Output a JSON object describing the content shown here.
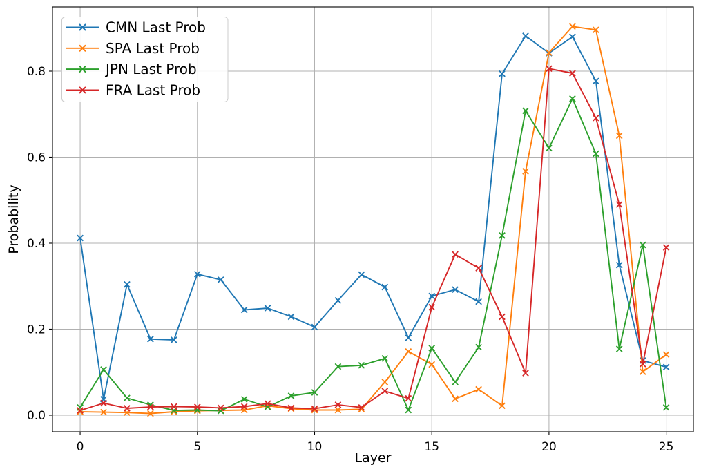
{
  "figure": {
    "background": "#ffffff"
  },
  "chart_data": {
    "type": "line",
    "title": "",
    "xlabel": "Layer",
    "ylabel": "Probability",
    "x": [
      0,
      1,
      2,
      3,
      4,
      5,
      6,
      7,
      8,
      9,
      10,
      11,
      12,
      13,
      14,
      15,
      16,
      17,
      18,
      19,
      20,
      21,
      22,
      23,
      24,
      25
    ],
    "series": [
      {
        "name": "CMN Last Prob",
        "color": "#1f77b4",
        "marker": "x",
        "values": [
          0.412,
          0.037,
          0.304,
          0.177,
          0.175,
          0.328,
          0.315,
          0.245,
          0.249,
          0.229,
          0.205,
          0.267,
          0.327,
          0.298,
          0.18,
          0.277,
          0.292,
          0.264,
          0.794,
          0.882,
          0.842,
          0.88,
          0.777,
          0.349,
          0.127,
          0.112
        ]
      },
      {
        "name": "SPA Last Prob",
        "color": "#ff7f0e",
        "marker": "x",
        "values": [
          0.008,
          0.007,
          0.006,
          0.004,
          0.008,
          0.01,
          0.011,
          0.012,
          0.022,
          0.015,
          0.012,
          0.012,
          0.014,
          0.077,
          0.148,
          0.118,
          0.038,
          0.06,
          0.022,
          0.567,
          0.843,
          0.904,
          0.896,
          0.65,
          0.101,
          0.141
        ]
      },
      {
        "name": "JPN Last Prob",
        "color": "#2ca02c",
        "marker": "x",
        "values": [
          0.018,
          0.106,
          0.04,
          0.024,
          0.011,
          0.012,
          0.01,
          0.037,
          0.019,
          0.045,
          0.053,
          0.113,
          0.116,
          0.132,
          0.012,
          0.156,
          0.077,
          0.158,
          0.418,
          0.708,
          0.621,
          0.736,
          0.608,
          0.154,
          0.396,
          0.018
        ]
      },
      {
        "name": "FRA Last Prob",
        "color": "#d62728",
        "marker": "x",
        "values": [
          0.011,
          0.028,
          0.016,
          0.019,
          0.02,
          0.019,
          0.017,
          0.02,
          0.027,
          0.017,
          0.015,
          0.024,
          0.018,
          0.056,
          0.039,
          0.251,
          0.374,
          0.342,
          0.229,
          0.098,
          0.806,
          0.795,
          0.691,
          0.49,
          0.119,
          0.39
        ]
      }
    ],
    "xticks": [
      0,
      5,
      10,
      15,
      20,
      25
    ],
    "xtick_labels": [
      "0",
      "5",
      "10",
      "15",
      "20",
      "25"
    ],
    "yticks": [
      0.0,
      0.2,
      0.4,
      0.6,
      0.8
    ],
    "ytick_labels": [
      "0.0",
      "0.2",
      "0.4",
      "0.6",
      "0.8"
    ],
    "xlim": [
      -1.18,
      26.16
    ],
    "ylim": [
      -0.0386,
      0.9494
    ],
    "grid": true,
    "legend_position": "upper-left"
  },
  "colors": {
    "grid": "#b0b0b0",
    "spine": "#000000",
    "text": "#000000",
    "legend_border": "#cccccc",
    "legend_fill": "#ffffff"
  }
}
